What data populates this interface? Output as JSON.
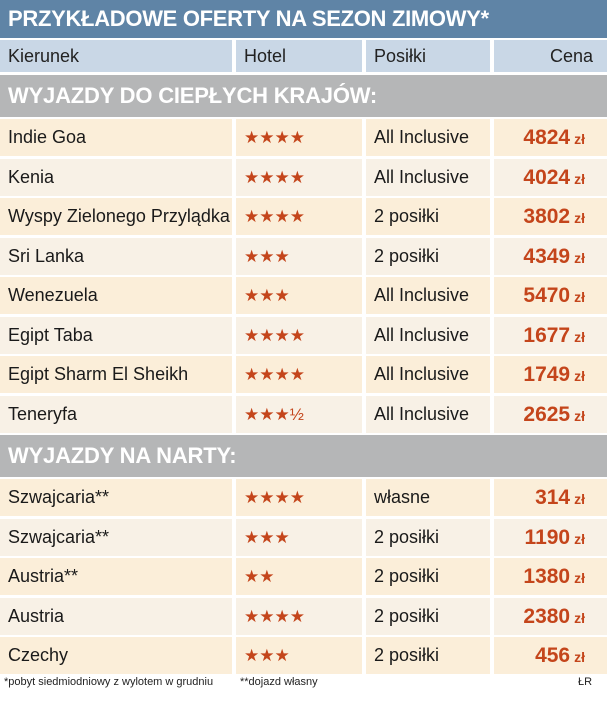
{
  "title": "PRZYKŁADOWE OFERTY NA SEZON ZIMOWY*",
  "columns": [
    "Kierunek",
    "Hotel",
    "Posiłki",
    "Cena"
  ],
  "sections": [
    {
      "title": "WYJAZDY DO CIEPŁYCH KRAJÓW:",
      "rows": [
        {
          "kierunek": "Indie Goa",
          "hotel": "★★★★",
          "posilki": "All Inclusive",
          "cena": "4824"
        },
        {
          "kierunek": "Kenia",
          "hotel": "★★★★",
          "posilki": "All Inclusive",
          "cena": "4024"
        },
        {
          "kierunek": "Wyspy Zielonego Przylądka",
          "hotel": "★★★★",
          "posilki": "2 posiłki",
          "cena": "3802"
        },
        {
          "kierunek": "Sri Lanka",
          "hotel": "★★★",
          "posilki": "2 posiłki",
          "cena": "4349"
        },
        {
          "kierunek": "Wenezuela",
          "hotel": "★★★",
          "posilki": "All Inclusive",
          "cena": "5470"
        },
        {
          "kierunek": "Egipt Taba",
          "hotel": "★★★★",
          "posilki": "All Inclusive",
          "cena": "1677"
        },
        {
          "kierunek": "Egipt Sharm El Sheikh",
          "hotel": "★★★★",
          "posilki": "All Inclusive",
          "cena": "1749"
        },
        {
          "kierunek": "Teneryfa",
          "hotel": "★★★½",
          "posilki": "All Inclusive",
          "cena": "2625"
        }
      ]
    },
    {
      "title": "WYJAZDY NA NARTY:",
      "rows": [
        {
          "kierunek": "Szwajcaria**",
          "hotel": "★★★★",
          "posilki": "własne",
          "cena": "314"
        },
        {
          "kierunek": "Szwajcaria**",
          "hotel": "★★★",
          "posilki": "2 posiłki",
          "cena": "1190"
        },
        {
          "kierunek": "Austria**",
          "hotel": "★★",
          "posilki": "2 posiłki",
          "cena": "1380"
        },
        {
          "kierunek": "Austria",
          "hotel": "★★★★",
          "posilki": "2 posiłki",
          "cena": "2380"
        },
        {
          "kierunek": "Czechy",
          "hotel": "★★★",
          "posilki": "2 posiłki",
          "cena": "456"
        }
      ]
    }
  ],
  "currency": "zł",
  "footnote1": "*pobyt siedmiodniowy z wylotem w grudniu",
  "footnote2": "**dojazd własny",
  "credit": "ŁR",
  "colors": {
    "title_bg": "#5f84a6",
    "header_bg": "#c9d7e6",
    "section_bg": "#b5b6b7",
    "price": "#c4451b",
    "row_a": "#fbeed9",
    "row_b": "#f8f1e6"
  }
}
